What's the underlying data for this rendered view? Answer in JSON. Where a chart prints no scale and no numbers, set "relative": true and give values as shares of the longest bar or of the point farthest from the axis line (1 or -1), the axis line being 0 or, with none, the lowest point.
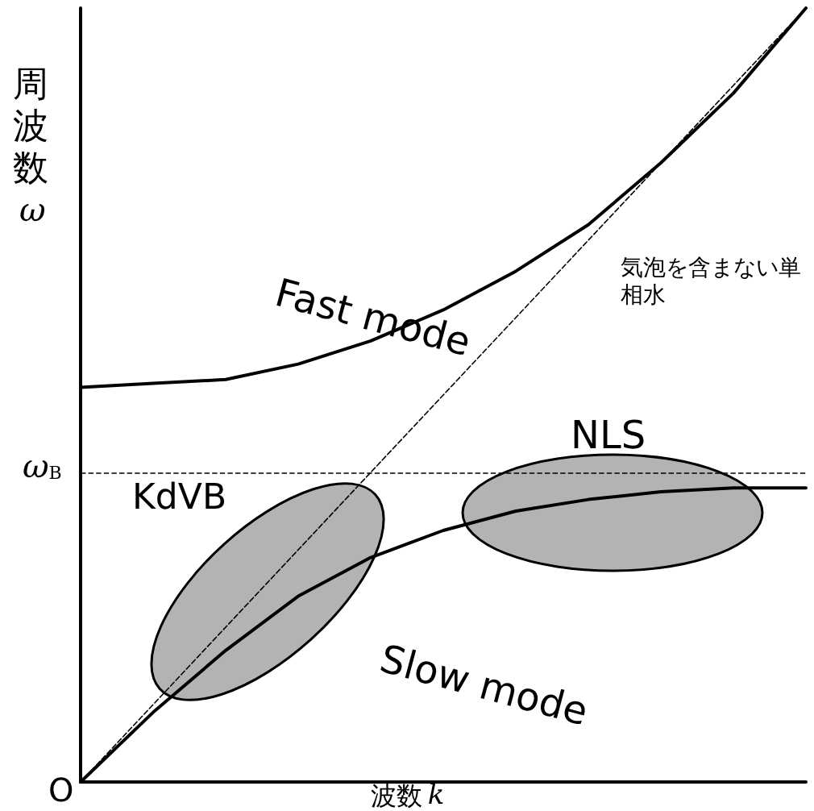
{
  "chart_data": {
    "type": "line",
    "relative": true,
    "xlabel": "波数 k",
    "ylabel": "周波数 ω",
    "categories": [
      null,
      null,
      null,
      null,
      null,
      null,
      null,
      null,
      null,
      null,
      null
    ],
    "series": [
      {
        "name": "Fast mode",
        "color": "#000000",
        "values": [
          0.51,
          0.515,
          0.52,
          0.54,
          0.57,
          0.61,
          0.66,
          0.72,
          0.8,
          0.89,
          1.0
        ]
      },
      {
        "name": "Slow mode",
        "color": "#000000",
        "values": [
          0,
          0.09,
          0.17,
          0.24,
          0.29,
          0.325,
          0.35,
          0.365,
          0.375,
          0.38,
          0.38
        ]
      },
      {
        "name": "気泡を含まない単相水",
        "color": "#000000",
        "line_style": "dashed",
        "values": [
          0,
          0.1,
          0.2,
          0.3,
          0.4,
          0.5,
          0.6,
          0.7,
          0.8,
          0.9,
          1.0
        ]
      }
    ],
    "ref_lines": [
      {
        "axis": "y",
        "value": 0.4,
        "label": "ω$_{B}$",
        "line_style": "dashed",
        "color": "#000000"
      }
    ],
    "annotations": [
      "O",
      "KdVB",
      "NLS"
    ],
    "grid": false
  }
}
